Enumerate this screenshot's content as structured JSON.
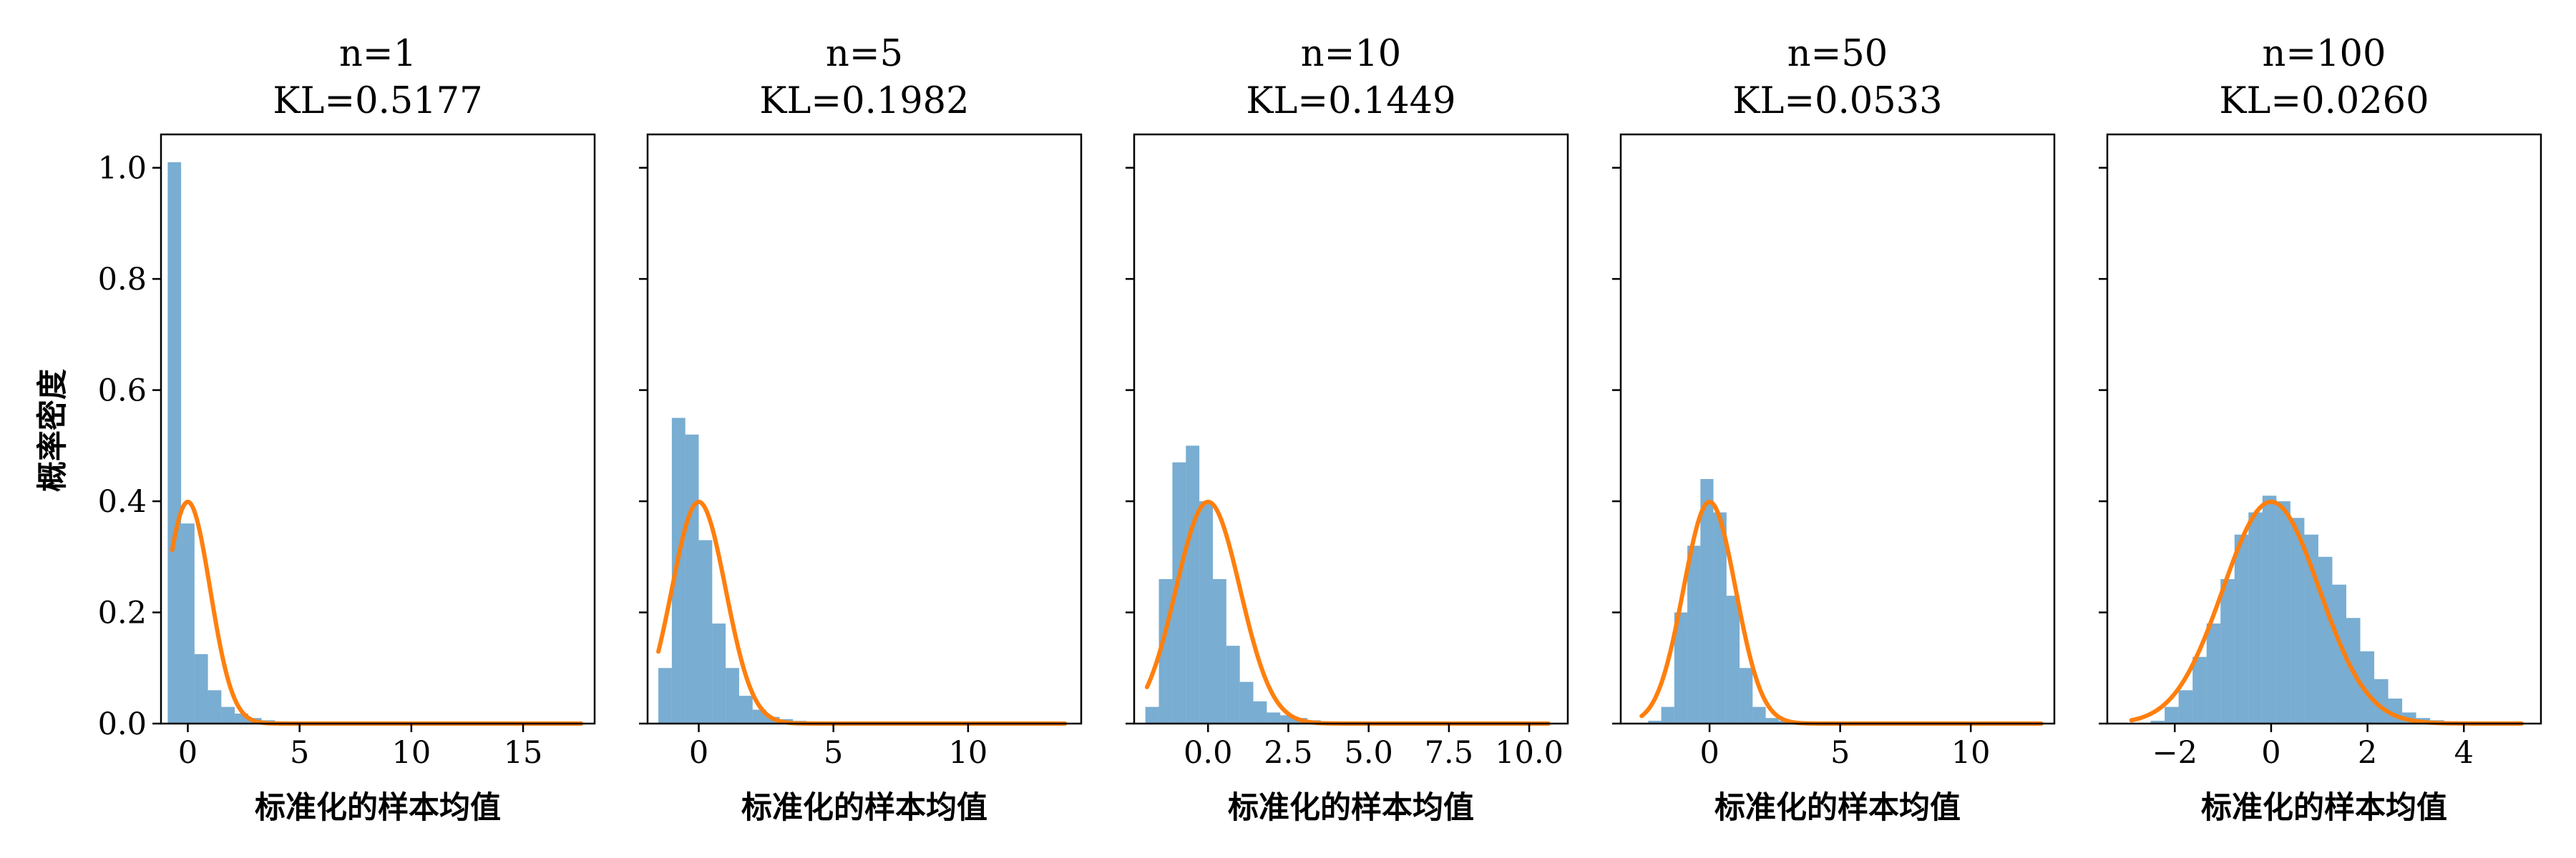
{
  "figure": {
    "ylabel": "概率密度",
    "colors": {
      "histogram": "#1f77b4",
      "normal_curve": "#ff7f0e"
    }
  },
  "chart_data": [
    {
      "type": "bar",
      "title_line1": "n=1",
      "title_line2": "KL=0.5177",
      "xlabel": "标准化的样本均值",
      "xlim": [
        -1.2,
        18.2
      ],
      "ylim": [
        0,
        1.06
      ],
      "xticks": [
        {
          "v": 0,
          "t": "0"
        },
        {
          "v": 5,
          "t": "5"
        },
        {
          "v": 10,
          "t": "10"
        },
        {
          "v": 15,
          "t": "15"
        }
      ],
      "yticks": [
        {
          "v": 0,
          "t": "0.0"
        },
        {
          "v": 0.2,
          "t": "0.2"
        },
        {
          "v": 0.4,
          "t": "0.4"
        },
        {
          "v": 0.6,
          "t": "0.6"
        },
        {
          "v": 0.8,
          "t": "0.8"
        },
        {
          "v": 1.0,
          "t": "1.0"
        }
      ],
      "show_ytick_labels": true,
      "bins": {
        "start": -0.9,
        "width": 0.6,
        "values": [
          1.01,
          0.36,
          0.125,
          0.06,
          0.03,
          0.018,
          0.01,
          0.006,
          0.004,
          0.003,
          0.002,
          0.002,
          0.001,
          0.001,
          0.001,
          0.001,
          0.001,
          0.001,
          0.001,
          0.001,
          0.001,
          0.001,
          0.0005,
          0.0005,
          0.0005,
          0.0005,
          0.0005,
          0.0005,
          0.0005,
          0.0005,
          0.0005
        ]
      },
      "curve_range": [
        -0.7,
        17.6
      ]
    },
    {
      "type": "bar",
      "title_line1": "n=5",
      "title_line2": "KL=0.1982",
      "xlabel": "标准化的样本均值",
      "xlim": [
        -1.9,
        14.2
      ],
      "ylim": [
        0,
        1.06
      ],
      "xticks": [
        {
          "v": 0,
          "t": "0"
        },
        {
          "v": 5,
          "t": "5"
        },
        {
          "v": 10,
          "t": "10"
        }
      ],
      "yticks": [
        {
          "v": 0,
          "t": "0.0"
        },
        {
          "v": 0.2,
          "t": "0.2"
        },
        {
          "v": 0.4,
          "t": "0.4"
        },
        {
          "v": 0.6,
          "t": "0.6"
        },
        {
          "v": 0.8,
          "t": "0.8"
        },
        {
          "v": 1.0,
          "t": "1.0"
        }
      ],
      "show_ytick_labels": false,
      "bins": {
        "start": -1.5,
        "width": 0.5,
        "values": [
          0.1,
          0.55,
          0.52,
          0.33,
          0.18,
          0.1,
          0.05,
          0.025,
          0.012,
          0.008,
          0.005,
          0.004,
          0.003,
          0.002,
          0.002,
          0.001,
          0.001,
          0.001,
          0.001,
          0.001,
          0.001,
          0.0005,
          0.0005,
          0.0005,
          0.0005,
          0.0005,
          0.0005,
          0.0005,
          0.0005,
          0.0005,
          0.0005
        ]
      },
      "curve_range": [
        -1.5,
        13.6
      ]
    },
    {
      "type": "bar",
      "title_line1": "n=10",
      "title_line2": "KL=0.1449",
      "xlabel": "标准化的样本均值",
      "xlim": [
        -2.3,
        11.2
      ],
      "ylim": [
        0,
        1.06
      ],
      "xticks": [
        {
          "v": 0,
          "t": "0.0"
        },
        {
          "v": 2.5,
          "t": "2.5"
        },
        {
          "v": 5,
          "t": "5.0"
        },
        {
          "v": 7.5,
          "t": "7.5"
        },
        {
          "v": 10,
          "t": "10.0"
        }
      ],
      "yticks": [
        {
          "v": 0,
          "t": "0.0"
        },
        {
          "v": 0.2,
          "t": "0.2"
        },
        {
          "v": 0.4,
          "t": "0.4"
        },
        {
          "v": 0.6,
          "t": "0.6"
        },
        {
          "v": 0.8,
          "t": "0.8"
        },
        {
          "v": 1.0,
          "t": "1.0"
        }
      ],
      "show_ytick_labels": false,
      "bins": {
        "start": -1.95,
        "width": 0.42,
        "values": [
          0.03,
          0.26,
          0.47,
          0.5,
          0.4,
          0.26,
          0.14,
          0.075,
          0.04,
          0.02,
          0.015,
          0.01,
          0.006,
          0.004,
          0.003,
          0.002,
          0.002,
          0.001,
          0.001,
          0.001,
          0.001,
          0.001,
          0.0005,
          0.0005,
          0.0005,
          0.0005,
          0.0005,
          0.0005,
          0.0005,
          0.0005,
          0.0005
        ]
      },
      "curve_range": [
        -1.9,
        10.6
      ]
    },
    {
      "type": "bar",
      "title_line1": "n=50",
      "title_line2": "KL=0.0533",
      "xlabel": "标准化的样本均值",
      "xlim": [
        -3.4,
        13.2
      ],
      "ylim": [
        0,
        1.06
      ],
      "xticks": [
        {
          "v": 0,
          "t": "0"
        },
        {
          "v": 5,
          "t": "5"
        },
        {
          "v": 10,
          "t": "10"
        }
      ],
      "yticks": [
        {
          "v": 0,
          "t": "0.0"
        },
        {
          "v": 0.2,
          "t": "0.2"
        },
        {
          "v": 0.4,
          "t": "0.4"
        },
        {
          "v": 0.6,
          "t": "0.6"
        },
        {
          "v": 0.8,
          "t": "0.8"
        },
        {
          "v": 1.0,
          "t": "1.0"
        }
      ],
      "show_ytick_labels": false,
      "bins": {
        "start": -2.35,
        "width": 0.5,
        "values": [
          0.005,
          0.03,
          0.2,
          0.32,
          0.44,
          0.38,
          0.23,
          0.1,
          0.03,
          0.01,
          0.005,
          0.003,
          0.002,
          0.002,
          0.001,
          0.001,
          0.001,
          0.001,
          0.001,
          0.0005,
          0.0005,
          0.0005,
          0.0005,
          0.0005,
          0.0005,
          0.0005,
          0.0005,
          0.0005,
          0.0005,
          0.0005,
          0.0005
        ]
      },
      "curve_range": [
        -2.6,
        12.7
      ]
    },
    {
      "type": "bar",
      "title_line1": "n=100",
      "title_line2": "KL=0.0260",
      "xlabel": "标准化的样本均值",
      "xlim": [
        -3.4,
        5.6
      ],
      "ylim": [
        0,
        1.06
      ],
      "xticks": [
        {
          "v": -2,
          "t": "−2"
        },
        {
          "v": 0,
          "t": "0"
        },
        {
          "v": 2,
          "t": "2"
        },
        {
          "v": 4,
          "t": "4"
        }
      ],
      "yticks": [
        {
          "v": 0,
          "t": "0.0"
        },
        {
          "v": 0.2,
          "t": "0.2"
        },
        {
          "v": 0.4,
          "t": "0.4"
        },
        {
          "v": 0.6,
          "t": "0.6"
        },
        {
          "v": 0.8,
          "t": "0.8"
        },
        {
          "v": 1.0,
          "t": "1.0"
        }
      ],
      "show_ytick_labels": false,
      "bins": {
        "start": -2.5,
        "width": 0.29,
        "values": [
          0.005,
          0.03,
          0.06,
          0.12,
          0.18,
          0.26,
          0.34,
          0.38,
          0.41,
          0.4,
          0.37,
          0.34,
          0.3,
          0.25,
          0.19,
          0.13,
          0.08,
          0.045,
          0.02,
          0.01,
          0.006,
          0.004,
          0.002,
          0.001,
          0.0005,
          0.0005,
          0.0005,
          0.0005
        ]
      },
      "curve_range": [
        -2.9,
        5.2
      ]
    }
  ]
}
